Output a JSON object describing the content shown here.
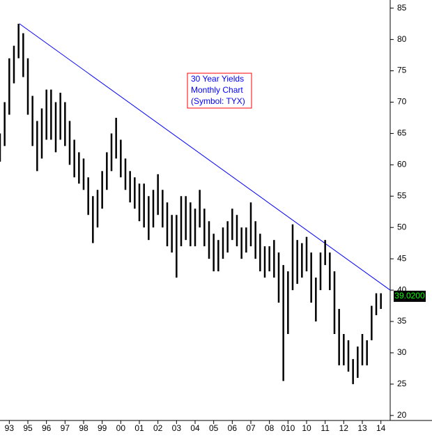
{
  "chart_data": {
    "type": "ohlc",
    "annotation": [
      "30 Year Yields",
      "Monthly Chart",
      "(Symbol: TYX)"
    ],
    "xlim": [
      1993.5,
      2014.5
    ],
    "xticks": [
      {
        "value": 1994,
        "label": "93"
      },
      {
        "value": 1995,
        "label": "95"
      },
      {
        "value": 1996,
        "label": "96"
      },
      {
        "value": 1997,
        "label": "97"
      },
      {
        "value": 1998,
        "label": "98"
      },
      {
        "value": 1999,
        "label": "99"
      },
      {
        "value": 2000,
        "label": "00"
      },
      {
        "value": 2001,
        "label": "01"
      },
      {
        "value": 2002,
        "label": "02"
      },
      {
        "value": 2003,
        "label": "03"
      },
      {
        "value": 2004,
        "label": "04"
      },
      {
        "value": 2005,
        "label": "05"
      },
      {
        "value": 2006,
        "label": "06"
      },
      {
        "value": 2007,
        "label": "07"
      },
      {
        "value": 2008,
        "label": "08"
      },
      {
        "value": 2009,
        "label": "010"
      },
      {
        "value": 2010,
        "label": "10"
      },
      {
        "value": 2011,
        "label": "11"
      },
      {
        "value": 2012,
        "label": "12"
      },
      {
        "value": 2013,
        "label": "13"
      },
      {
        "value": 2014,
        "label": "14"
      }
    ],
    "ylim": [
      19.2,
      86.3
    ],
    "yticks": [
      20,
      25,
      30,
      35,
      40,
      45,
      50,
      55,
      60,
      65,
      70,
      75,
      80,
      85
    ],
    "color": "#000000",
    "x": [
      1993.5,
      1993.75,
      1994,
      1994.25,
      1994.5,
      1994.75,
      1995,
      1995.25,
      1995.5,
      1995.75,
      1996,
      1996.25,
      1996.5,
      1996.75,
      1997,
      1997.25,
      1997.5,
      1997.75,
      1998,
      1998.25,
      1998.5,
      1998.75,
      1999,
      1999.25,
      1999.5,
      1999.75,
      2000,
      2000.25,
      2000.5,
      2000.75,
      2001,
      2001.25,
      2001.5,
      2001.75,
      2002,
      2002.25,
      2002.5,
      2002.75,
      2003,
      2003.25,
      2003.5,
      2003.75,
      2004,
      2004.25,
      2004.5,
      2004.75,
      2005,
      2005.25,
      2005.5,
      2005.75,
      2006,
      2006.25,
      2006.5,
      2006.75,
      2007,
      2007.25,
      2007.5,
      2007.75,
      2008,
      2008.25,
      2008.5,
      2008.75,
      2009,
      2009.25,
      2009.5,
      2009.75,
      2010,
      2010.25,
      2010.5,
      2010.75,
      2011,
      2011.25,
      2011.5,
      2011.75,
      2012,
      2012.25,
      2012.5,
      2012.75,
      2013,
      2013.25,
      2013.5,
      2013.75,
      2014
    ],
    "high": [
      65,
      70,
      77,
      79,
      82.5,
      81,
      77,
      71,
      67,
      69,
      72,
      72,
      70,
      71.5,
      70,
      67,
      64,
      62,
      61,
      58,
      55,
      56,
      59,
      62,
      65,
      67.5,
      64,
      61,
      59,
      58,
      57,
      57,
      55,
      56,
      58.5,
      56,
      54,
      52,
      52,
      55,
      55,
      54,
      53,
      56,
      53,
      51,
      49,
      48,
      50,
      51,
      53,
      52,
      50,
      50,
      54,
      51,
      49,
      47,
      47,
      48,
      46,
      44,
      43,
      50.5,
      48,
      47.5,
      48.5,
      46,
      42,
      46,
      48,
      46,
      43,
      37,
      33,
      32,
      29,
      31,
      33,
      32,
      37.5,
      39.5,
      39.5
    ],
    "low": [
      60.5,
      63,
      68,
      73,
      77,
      74,
      68,
      63,
      59,
      61,
      64,
      64,
      62,
      64,
      63,
      60,
      58,
      57,
      56,
      52,
      47.5,
      50,
      53,
      56,
      59,
      61,
      58,
      56,
      54,
      53,
      51,
      50,
      48,
      50,
      52,
      50,
      47,
      46,
      42,
      47,
      48,
      47,
      47,
      50,
      47,
      45,
      43,
      43,
      45,
      46,
      48,
      47,
      45,
      46,
      47,
      45,
      43,
      42,
      43,
      42,
      38,
      25.5,
      33,
      40,
      41,
      42,
      43,
      38,
      35,
      40,
      44,
      40,
      33,
      28,
      28,
      27,
      25,
      26,
      28,
      28,
      32,
      36,
      37
    ],
    "last": {
      "value": 39.02,
      "label": "39.0200"
    },
    "trendline": {
      "color": "#0000ff",
      "x": [
        1994.55,
        2014.5
      ],
      "values": [
        82.5,
        40
      ]
    }
  }
}
